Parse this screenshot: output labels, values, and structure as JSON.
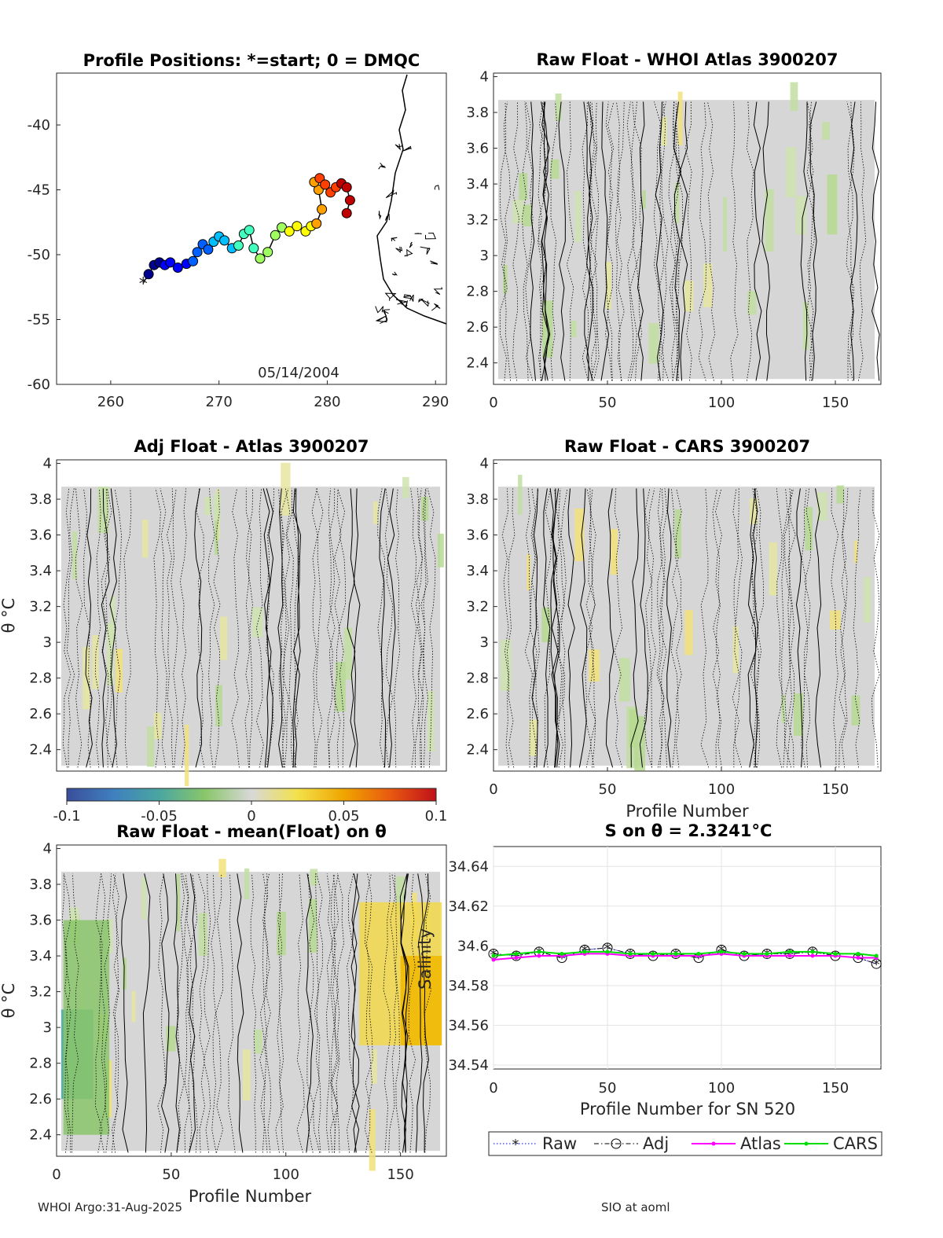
{
  "footer": {
    "left": "WHOI Argo:31-Aug-2025",
    "right": "SIO at aoml"
  },
  "colorbar": {
    "ticks": [
      "-0.1",
      "-0.05",
      "0",
      "0.05",
      "0.1"
    ],
    "range": [
      -0.1,
      0.1
    ],
    "colors": [
      "#3a4e9a",
      "#3f7fbf",
      "#4aa6a0",
      "#8ac66a",
      "#d8d8d8",
      "#f2e14a",
      "#f0a500",
      "#e85a10",
      "#c0101a"
    ]
  },
  "map": {
    "title": "Profile Positions: *=start; 0 = DMQC",
    "date": "05/14/2004",
    "xlim": [
      255,
      291
    ],
    "ylim": [
      -60,
      -36
    ],
    "xticks": [
      "260",
      "270",
      "280",
      "290"
    ],
    "yticks": [
      "-40",
      "-45",
      "-50",
      "-55",
      "-60"
    ],
    "track_lon": [
      263.0,
      263.5,
      264.0,
      264.5,
      265.0,
      265.5,
      266.2,
      267.0,
      267.6,
      268.0,
      268.5,
      269.0,
      269.5,
      270.0,
      270.5,
      271.2,
      271.8,
      272.3,
      272.8,
      273.2,
      273.8,
      274.5,
      275.2,
      275.8,
      276.5,
      277.2,
      278.0,
      278.5,
      279.0,
      279.5,
      279.2,
      278.8,
      279.3,
      279.8,
      280.3,
      280.8,
      281.3,
      281.8,
      282.1,
      281.8
    ],
    "track_lat": [
      -52.2,
      -51.5,
      -50.8,
      -50.6,
      -50.8,
      -50.6,
      -51.0,
      -50.7,
      -50.5,
      -49.8,
      -49.2,
      -49.6,
      -49.0,
      -48.6,
      -48.9,
      -49.5,
      -49.3,
      -48.4,
      -48.1,
      -49.5,
      -50.3,
      -49.8,
      -48.5,
      -47.9,
      -48.2,
      -47.8,
      -48.2,
      -47.8,
      -47.6,
      -46.5,
      -45.0,
      -44.4,
      -44.1,
      -44.6,
      -45.2,
      -44.8,
      -44.5,
      -44.8,
      -45.8,
      -46.8
    ],
    "start_marker": "*"
  },
  "panels": [
    {
      "id": "raw-whoi",
      "title": "Raw Float - WHOI Atlas  3900207",
      "yticks": [
        "4",
        "3.8",
        "3.6",
        "3.4",
        "3.2",
        "3",
        "2.8",
        "2.6",
        "2.4"
      ],
      "xticks": [
        "0",
        "50",
        "100",
        "150"
      ],
      "xlabel": "",
      "ylabel": ""
    },
    {
      "id": "adj-atlas",
      "title": "Adj Float - Atlas  3900207",
      "yticks": [
        "4",
        "3.8",
        "3.6",
        "3.4",
        "3.2",
        "3",
        "2.8",
        "2.6",
        "2.4"
      ],
      "xticks": [],
      "xlabel": "",
      "ylabel": "θ °C"
    },
    {
      "id": "raw-cars",
      "title": "Raw Float - CARS  3900207",
      "yticks": [
        "4",
        "3.8",
        "3.6",
        "3.4",
        "3.2",
        "3",
        "2.8",
        "2.6",
        "2.4"
      ],
      "xticks": [
        "0",
        "50",
        "100",
        "150"
      ],
      "xlabel": "Profile Number",
      "ylabel": ""
    },
    {
      "id": "raw-mean",
      "title": "Raw Float - mean(Float) on θ",
      "yticks": [
        "4",
        "3.8",
        "3.6",
        "3.4",
        "3.2",
        "3",
        "2.8",
        "2.6",
        "2.4"
      ],
      "xticks": [
        "0",
        "50",
        "100",
        "150"
      ],
      "xlabel": "Profile Number",
      "ylabel": "θ °C"
    }
  ],
  "chart_data": [
    {
      "type": "line",
      "title": "S on θ = 2.3241°C",
      "xlabel": "Profile Number for SN 520",
      "ylabel": "Salinity",
      "xlim": [
        0,
        170
      ],
      "ylim": [
        34.538,
        34.65
      ],
      "xticks": [
        "0",
        "50",
        "100",
        "150"
      ],
      "yticks": [
        "34.64",
        "34.62",
        "34.6",
        "34.58",
        "34.56",
        "34.54"
      ],
      "grid": true,
      "legend_position": "bottom",
      "series": [
        {
          "name": "Raw",
          "color": "#0000ff",
          "marker": "*",
          "style": "dotted",
          "x": [
            0,
            10,
            20,
            30,
            40,
            50,
            60,
            70,
            80,
            90,
            100,
            110,
            120,
            130,
            140,
            150,
            160,
            168
          ],
          "values": [
            34.596,
            34.595,
            34.597,
            34.594,
            34.598,
            34.599,
            34.596,
            34.595,
            34.596,
            34.594,
            34.598,
            34.595,
            34.596,
            34.596,
            34.597,
            34.595,
            34.594,
            34.591
          ]
        },
        {
          "name": "Adj",
          "color": "#000000",
          "marker": "o",
          "style": "dashdot",
          "x": [
            0,
            10,
            20,
            30,
            40,
            50,
            60,
            70,
            80,
            90,
            100,
            110,
            120,
            130,
            140,
            150,
            160,
            168
          ],
          "values": [
            34.596,
            34.595,
            34.597,
            34.594,
            34.598,
            34.599,
            34.596,
            34.595,
            34.596,
            34.594,
            34.598,
            34.595,
            34.596,
            34.596,
            34.597,
            34.595,
            34.594,
            34.591
          ]
        },
        {
          "name": "Atlas",
          "color": "#ff00ff",
          "marker": ".",
          "style": "solid",
          "x": [
            0,
            10,
            20,
            30,
            40,
            50,
            60,
            70,
            80,
            90,
            100,
            110,
            120,
            130,
            140,
            150,
            160,
            168
          ],
          "values": [
            34.593,
            34.594,
            34.595,
            34.595,
            34.596,
            34.596,
            34.595,
            34.595,
            34.595,
            34.595,
            34.596,
            34.595,
            34.595,
            34.595,
            34.595,
            34.595,
            34.594,
            34.594
          ]
        },
        {
          "name": "CARS",
          "color": "#00dd00",
          "marker": ".",
          "style": "solid",
          "x": [
            0,
            10,
            20,
            30,
            40,
            50,
            60,
            70,
            80,
            90,
            100,
            110,
            120,
            130,
            140,
            150,
            160,
            168
          ],
          "values": [
            34.595,
            34.596,
            34.597,
            34.596,
            34.597,
            34.597,
            34.596,
            34.596,
            34.596,
            34.596,
            34.597,
            34.596,
            34.596,
            34.597,
            34.597,
            34.596,
            34.596,
            34.595
          ]
        }
      ]
    }
  ]
}
